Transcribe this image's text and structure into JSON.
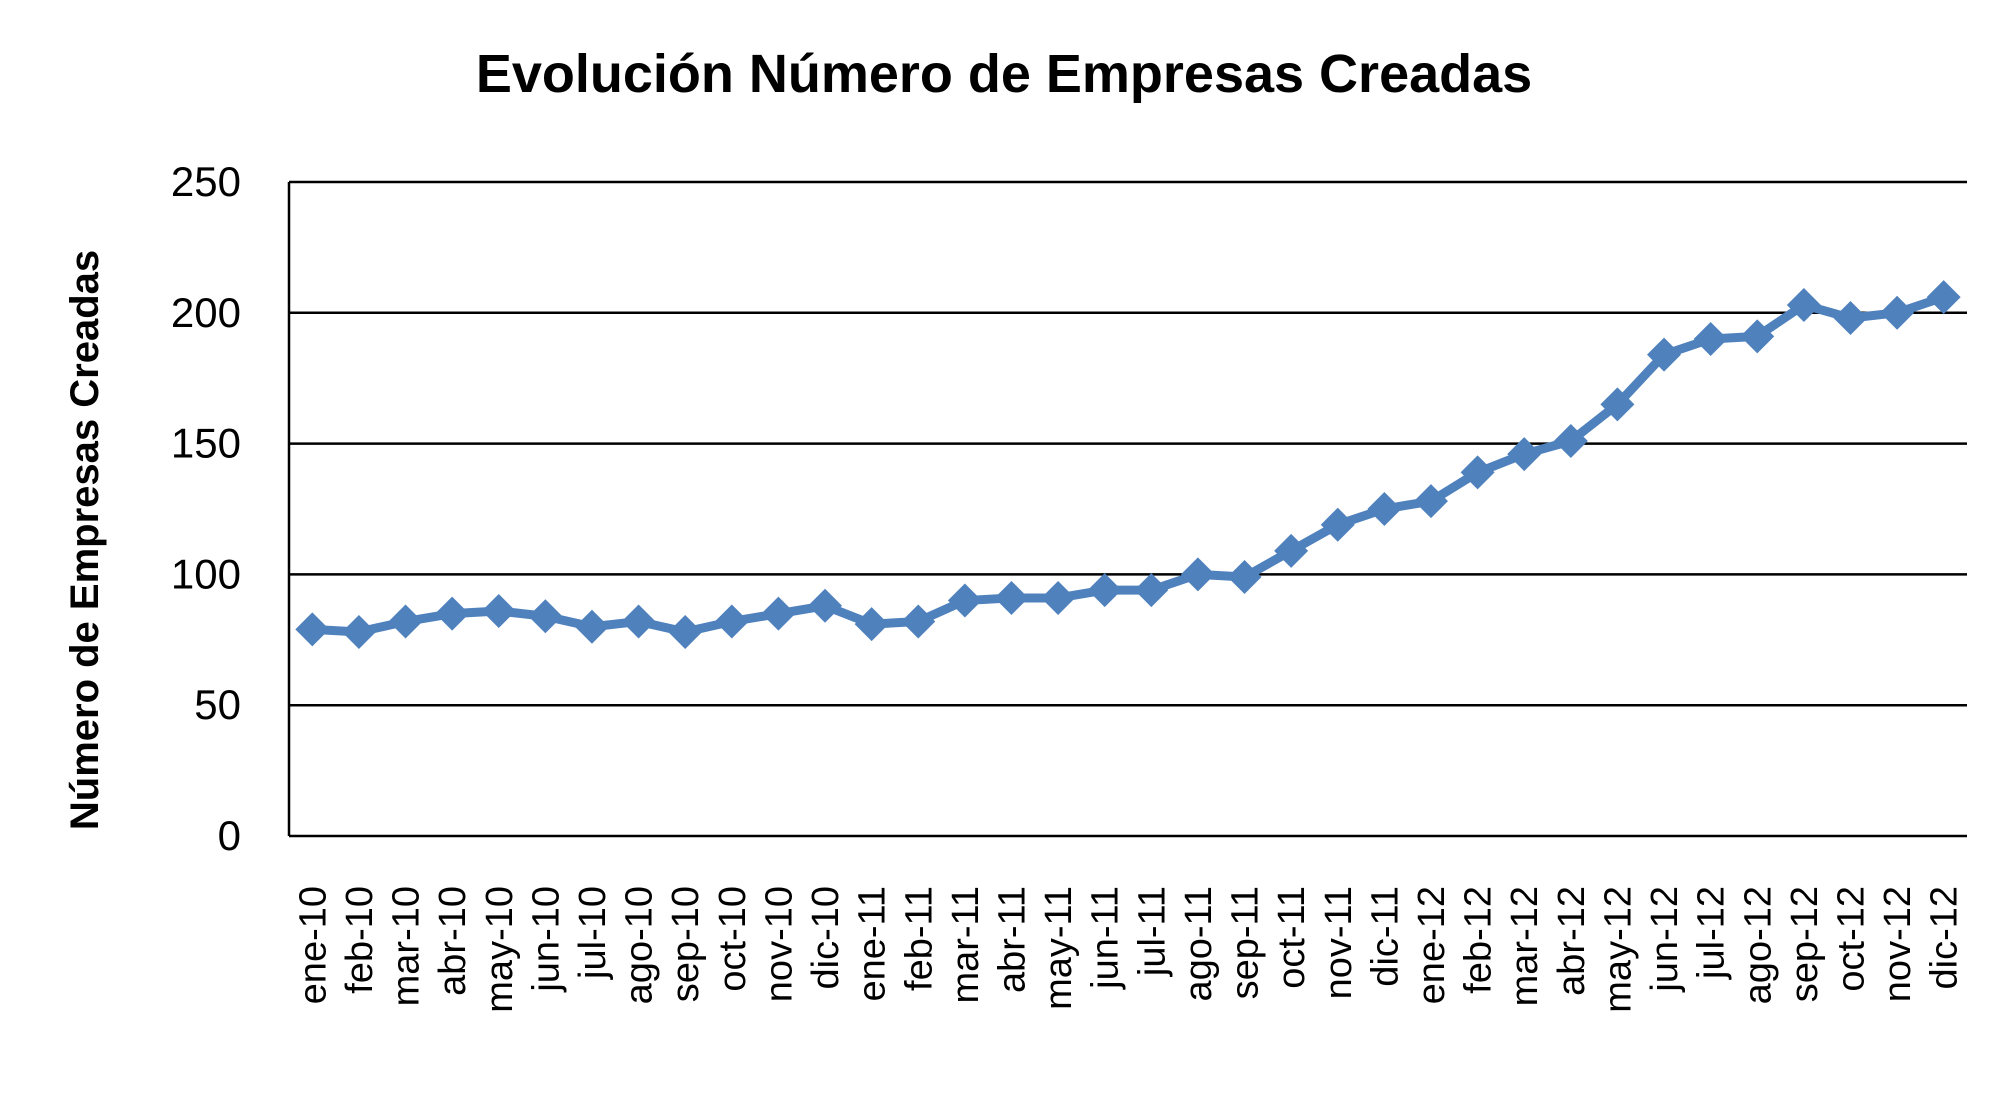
{
  "chart_data": {
    "type": "line",
    "title": "Evolución Número de Empresas Creadas",
    "xlabel": "",
    "ylabel": "Número de Empresas Creadas",
    "ylim": [
      0,
      250
    ],
    "yticks": [
      "0",
      "50",
      "100",
      "150",
      "200",
      "250"
    ],
    "grid": true,
    "legend": "none",
    "categories": [
      "ene-10",
      "feb-10",
      "mar-10",
      "abr-10",
      "may-10",
      "jun-10",
      "jul-10",
      "ago-10",
      "sep-10",
      "oct-10",
      "nov-10",
      "dic-10",
      "ene-11",
      "feb-11",
      "mar-11",
      "abr-11",
      "may-11",
      "jun-11",
      "jul-11",
      "ago-11",
      "sep-11",
      "oct-11",
      "nov-11",
      "dic-11",
      "ene-12",
      "feb-12",
      "mar-12",
      "abr-12",
      "may-12",
      "jun-12",
      "jul-12",
      "ago-12",
      "sep-12",
      "oct-12",
      "nov-12",
      "dic-12"
    ],
    "series": [
      {
        "color": "#4f81bd",
        "marker": "diamond",
        "values": [
          79,
          78,
          82,
          85,
          86,
          84,
          80,
          82,
          78,
          82,
          85,
          88,
          81,
          82,
          90,
          91,
          91,
          94,
          94,
          100,
          99,
          109,
          119,
          125,
          128,
          139,
          146,
          151,
          165,
          184,
          190,
          191,
          203,
          198,
          200,
          206
        ]
      }
    ]
  }
}
